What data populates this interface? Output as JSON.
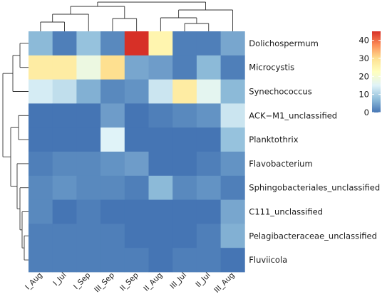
{
  "chart_data": {
    "type": "heatmap",
    "title": "",
    "xlabel": "",
    "ylabel": "",
    "columns": [
      "I_Aug",
      "I_Jul",
      "I_Sep",
      "III_Sep",
      "II_Sep",
      "II_Aug",
      "III_Jul",
      "II_Jul",
      "III_Aug"
    ],
    "rows": [
      "Dolichospermum",
      "Microcystis",
      "Synechococcus",
      "ACK−M1_unclassified",
      "Planktothrix",
      "Flavobacterium",
      "Sphingobacteriales_unclassified",
      "C111_unclassified",
      "Pelagibacteraceae_unclassified",
      "Fluviicola"
    ],
    "values": [
      [
        7,
        1,
        8,
        2,
        45,
        25,
        1,
        1,
        5
      ],
      [
        27,
        27,
        18,
        30,
        5,
        4,
        1,
        7,
        1
      ],
      [
        14,
        12,
        6,
        2,
        3,
        13,
        27,
        16,
        7
      ],
      [
        0,
        0,
        0,
        4,
        0,
        1,
        2,
        3,
        13
      ],
      [
        0,
        0,
        0,
        15,
        0,
        0,
        0,
        0,
        8
      ],
      [
        1,
        2,
        2,
        3,
        4,
        0,
        0,
        1,
        3
      ],
      [
        2,
        3,
        2,
        2,
        1,
        7,
        2,
        3,
        1
      ],
      [
        2,
        0,
        1,
        0,
        0,
        0,
        0,
        0,
        5
      ],
      [
        1,
        1,
        1,
        1,
        0,
        0,
        0,
        1,
        6
      ],
      [
        1,
        1,
        1,
        1,
        1,
        0,
        1,
        1,
        0
      ]
    ],
    "colorbar": {
      "min": 0,
      "max": 45,
      "ticks": [
        0,
        10,
        20,
        30,
        40
      ],
      "stops": [
        "#4575b4",
        "#91bfdb",
        "#e0f3f8",
        "#ffffbf",
        "#fee090",
        "#fc8d59",
        "#d73027"
      ]
    },
    "legend_position": "right",
    "grid": false
  }
}
